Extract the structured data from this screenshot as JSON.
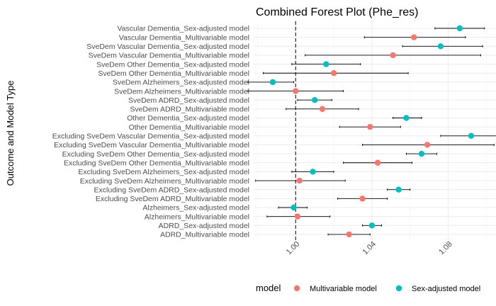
{
  "chart_data": {
    "type": "scatter",
    "subtype": "forest-plot",
    "title": "Combined Forest Plot (Phe_res)",
    "xlabel": "",
    "ylabel": "Outcome and Model Type",
    "xlim": [
      0.978,
      1.105
    ],
    "xticks": [
      1.0,
      1.04,
      1.08
    ],
    "xtick_labels": [
      "1.00",
      "1.04",
      "1.08"
    ],
    "xtick_rotation": 45,
    "reference_line": 1.0,
    "grid": true,
    "legend": {
      "title": "model",
      "position": "bottom",
      "entries": [
        {
          "name": "Multivariable model",
          "color": "#F8766D"
        },
        {
          "name": "Sex-adjusted model",
          "color": "#00BFC4"
        }
      ]
    },
    "rows": [
      {
        "label": "Vascular Dementia_Sex-adjusted model",
        "model": "Sex-adjusted model",
        "estimate": 1.086,
        "lower": 1.073,
        "upper": 1.099
      },
      {
        "label": "Vascular Dementia_Multivariable model",
        "model": "Multivariable model",
        "estimate": 1.062,
        "lower": 1.036,
        "upper": 1.089
      },
      {
        "label": "SveDem Vascular Dementia_Sex-adjusted model",
        "model": "Sex-adjusted model",
        "estimate": 1.076,
        "lower": 1.056,
        "upper": 1.098
      },
      {
        "label": "SveDem Vascular Dementia_Multivariable model",
        "model": "Multivariable model",
        "estimate": 1.051,
        "lower": 1.005,
        "upper": 1.097
      },
      {
        "label": "SveDem Other Dementia_Sex-adjusted model",
        "model": "Sex-adjusted model",
        "estimate": 1.016,
        "lower": 0.998,
        "upper": 1.034
      },
      {
        "label": "SveDem Other Dementia_Multivariable model",
        "model": "Multivariable model",
        "estimate": 1.02,
        "lower": 0.983,
        "upper": 1.059
      },
      {
        "label": "SveDem Alzheimers_Sex-adjusted model",
        "model": "Sex-adjusted model",
        "estimate": 0.988,
        "lower": 0.975,
        "upper": 0.999
      },
      {
        "label": "SveDem Alzheimers_Multivariable model",
        "model": "Multivariable model",
        "estimate": 1.0,
        "lower": 0.975,
        "upper": 1.025
      },
      {
        "label": "SveDem ADRD_Sex-adjusted model",
        "model": "Sex-adjusted model",
        "estimate": 1.01,
        "lower": 1.001,
        "upper": 1.019
      },
      {
        "label": "SveDem ADRD_Multivariable model",
        "model": "Multivariable model",
        "estimate": 1.014,
        "lower": 0.995,
        "upper": 1.033
      },
      {
        "label": "Other Dementia_Sex-adjusted model",
        "model": "Sex-adjusted model",
        "estimate": 1.058,
        "lower": 1.051,
        "upper": 1.066
      },
      {
        "label": "Other Dementia_Multivariable model",
        "model": "Multivariable model",
        "estimate": 1.039,
        "lower": 1.023,
        "upper": 1.055
      },
      {
        "label": "Excluding SveDem Vascular Dementia_Sex-adjusted model",
        "model": "Sex-adjusted model",
        "estimate": 1.092,
        "lower": 1.076,
        "upper": 1.109
      },
      {
        "label": "Excluding SveDem Vascular Dementia_Multivariable model",
        "model": "Multivariable model",
        "estimate": 1.069,
        "lower": 1.035,
        "upper": 1.104
      },
      {
        "label": "Excluding SveDem Other Dementia_Sex-adjusted model",
        "model": "Sex-adjusted model",
        "estimate": 1.066,
        "lower": 1.058,
        "upper": 1.074
      },
      {
        "label": "Excluding SveDem Other Dementia_Multivariable model",
        "model": "Multivariable model",
        "estimate": 1.043,
        "lower": 1.025,
        "upper": 1.061
      },
      {
        "label": "Excluding SveDem Alzheimers_Sex-adjusted model",
        "model": "Sex-adjusted model",
        "estimate": 1.009,
        "lower": 0.998,
        "upper": 1.02
      },
      {
        "label": "Excluding SveDem Alzheimers_Multivariable model",
        "model": "Multivariable model",
        "estimate": 1.002,
        "lower": 0.979,
        "upper": 1.026
      },
      {
        "label": "Excluding SveDem ADRD_Sex-adjusted model",
        "model": "Sex-adjusted model",
        "estimate": 1.054,
        "lower": 1.048,
        "upper": 1.06
      },
      {
        "label": "Excluding SveDem ADRD_Multivariable model",
        "model": "Multivariable model",
        "estimate": 1.035,
        "lower": 1.022,
        "upper": 1.048
      },
      {
        "label": "Alzheimers_Sex-adjusted model",
        "model": "Sex-adjusted model",
        "estimate": 0.999,
        "lower": 0.991,
        "upper": 1.006
      },
      {
        "label": "Alzheimers_Multivariable model",
        "model": "Multivariable model",
        "estimate": 1.001,
        "lower": 0.985,
        "upper": 1.018
      },
      {
        "label": "ADRD_Sex-adjusted model",
        "model": "Sex-adjusted model",
        "estimate": 1.04,
        "lower": 1.035,
        "upper": 1.045
      },
      {
        "label": "ADRD_Multivariable model",
        "model": "Multivariable model",
        "estimate": 1.028,
        "lower": 1.017,
        "upper": 1.039
      }
    ]
  }
}
